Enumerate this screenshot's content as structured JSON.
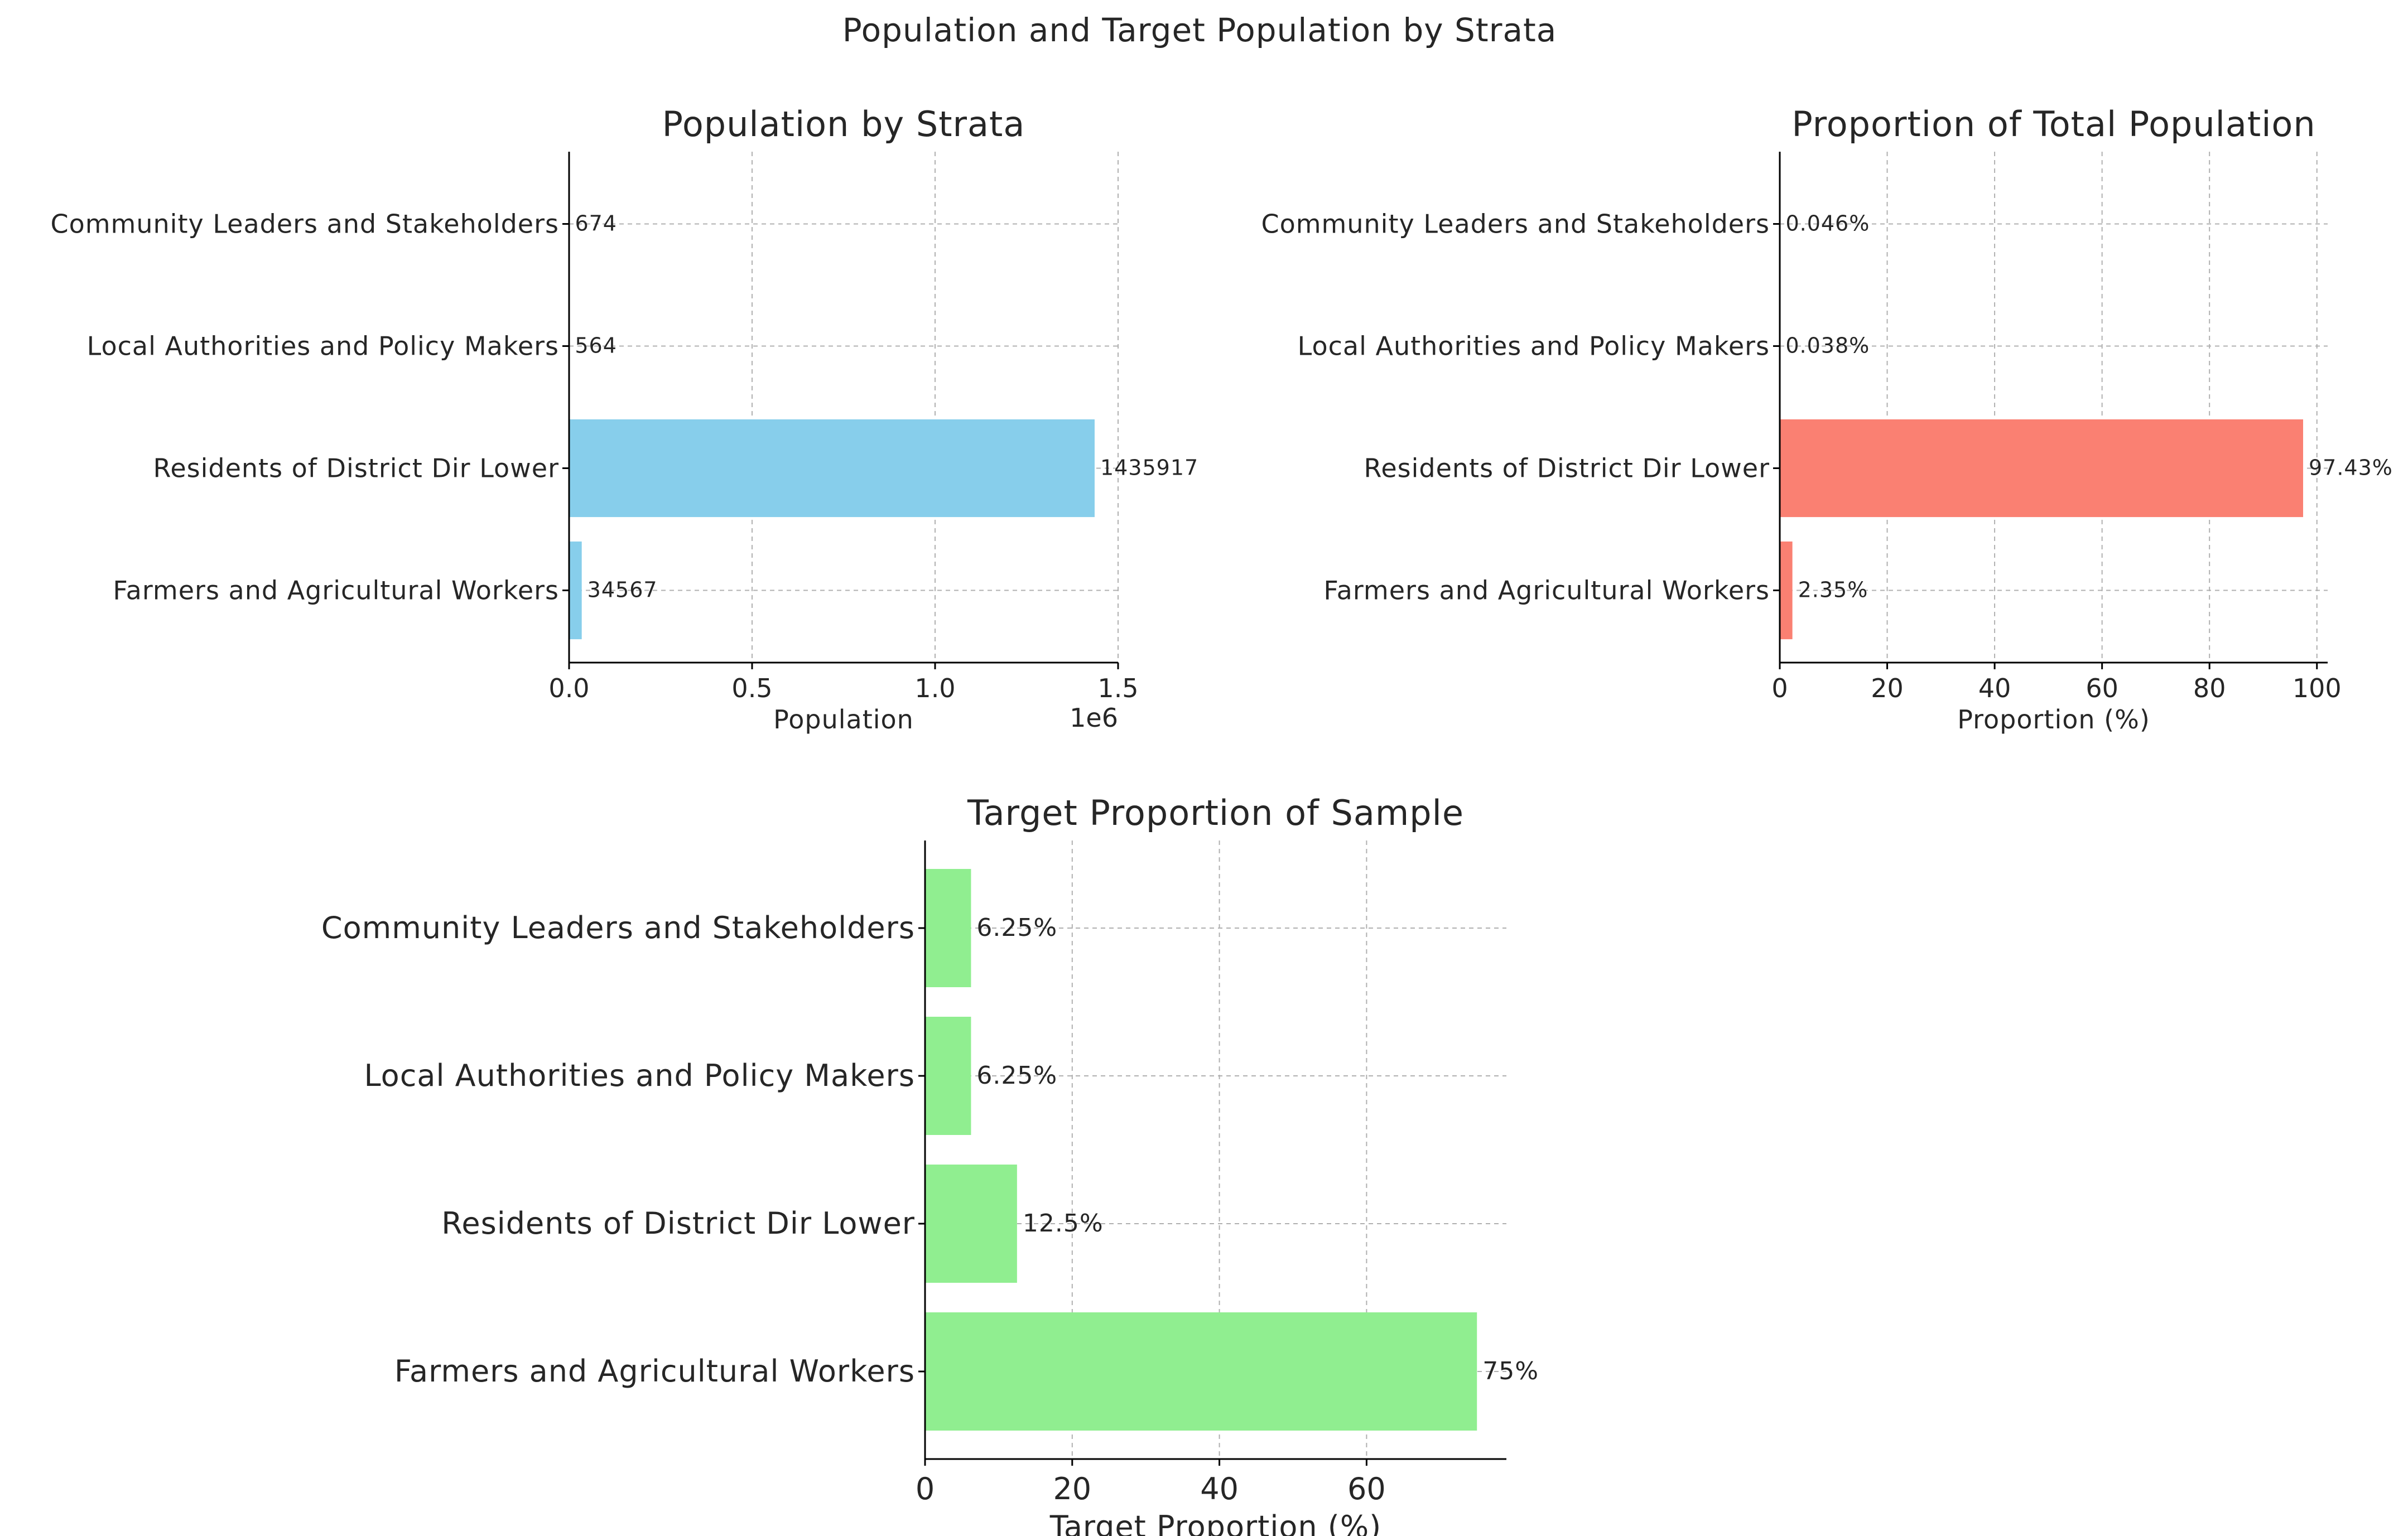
{
  "figure": {
    "suptitle": "Population and Target Population by Strata"
  },
  "chart_data": [
    {
      "type": "bar",
      "orientation": "horizontal",
      "title": "Population by Strata",
      "xlabel": "Population",
      "offset_label": "1e6",
      "categories": [
        "Farmers and Agricultural Workers",
        "Residents of District Dir Lower",
        "Local Authorities and Policy Makers",
        "Community Leaders and Stakeholders"
      ],
      "values": [
        34567,
        1435917,
        564,
        674
      ],
      "value_labels": [
        "34567",
        "1435917",
        "564",
        "674"
      ],
      "xlim": [
        0,
        1500000
      ],
      "xticks": [
        0,
        500000,
        1000000,
        1500000
      ],
      "xtick_labels": [
        "0.0",
        "0.5",
        "1.0",
        "1.5"
      ],
      "color": "#87ceeb",
      "grid": true
    },
    {
      "type": "bar",
      "orientation": "horizontal",
      "title": "Proportion of Total Population",
      "xlabel": "Proportion (%)",
      "categories": [
        "Farmers and Agricultural Workers",
        "Residents of District Dir Lower",
        "Local Authorities and Policy Makers",
        "Community Leaders and Stakeholders"
      ],
      "values": [
        2.35,
        97.43,
        0.038,
        0.046
      ],
      "value_labels": [
        "2.35%",
        "97.43%",
        "0.038%",
        "0.046%"
      ],
      "xlim": [
        0,
        102
      ],
      "xticks": [
        0,
        20,
        40,
        60,
        80,
        100
      ],
      "xtick_labels": [
        "0",
        "20",
        "40",
        "60",
        "80",
        "100"
      ],
      "color": "#fa8072",
      "grid": true
    },
    {
      "type": "bar",
      "orientation": "horizontal",
      "title": "Target Proportion of Sample",
      "xlabel": "Target Proportion (%)",
      "categories": [
        "Farmers and Agricultural Workers",
        "Residents of District Dir Lower",
        "Local Authorities and Policy Makers",
        "Community Leaders and Stakeholders"
      ],
      "values": [
        75,
        12.5,
        6.25,
        6.25
      ],
      "value_labels": [
        "75%",
        "12.5%",
        "6.25%",
        "6.25%"
      ],
      "xlim": [
        0,
        79
      ],
      "xticks": [
        0,
        20,
        40,
        60
      ],
      "xtick_labels": [
        "0",
        "20",
        "40",
        "60"
      ],
      "color": "#90ee90",
      "grid": true
    }
  ]
}
